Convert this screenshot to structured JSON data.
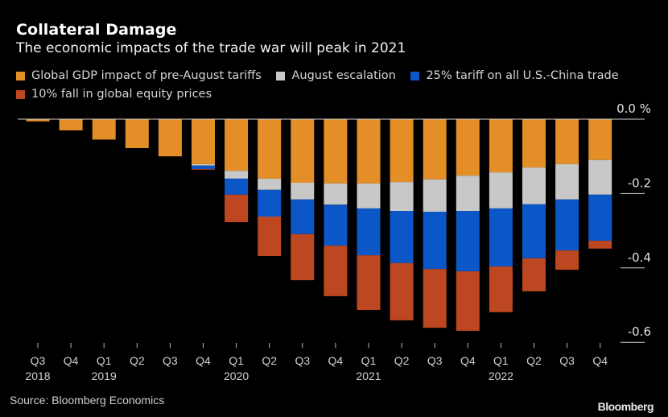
{
  "header": {
    "title": "Collateral Damage",
    "subtitle": "The economic impacts of the trade war will peak in 2021"
  },
  "footer": {
    "source": "Source: Bloomberg Economics",
    "brand": "Bloomberg"
  },
  "chart_data": {
    "type": "bar",
    "stacked": true,
    "title": "Collateral Damage",
    "subtitle": "The economic impacts of the trade war will peak in 2021",
    "xlabel": "",
    "ylabel": "",
    "ylim": [
      -0.62,
      0.0
    ],
    "y_unit": "%",
    "y_axis_position": "right",
    "yticks": [
      {
        "value": 0.0,
        "label": "0.0 %"
      },
      {
        "value": -0.2,
        "label": "-0.2"
      },
      {
        "value": -0.4,
        "label": "-0.4"
      },
      {
        "value": -0.6,
        "label": "-0.6"
      }
    ],
    "grid": false,
    "legend_position": "top-left",
    "categories": [
      "Q3 2018",
      "Q4 2018",
      "Q1 2019",
      "Q2 2019",
      "Q3 2019",
      "Q4 2019",
      "Q1 2020",
      "Q2 2020",
      "Q3 2020",
      "Q4 2020",
      "Q1 2021",
      "Q2 2021",
      "Q3 2021",
      "Q4 2021",
      "Q1 2022",
      "Q2 2022",
      "Q3 2022",
      "Q4 2022"
    ],
    "tick_labels": [
      {
        "quarter": "Q3",
        "year": "2018"
      },
      {
        "quarter": "Q4",
        "year": ""
      },
      {
        "quarter": "Q1",
        "year": "2019"
      },
      {
        "quarter": "Q2",
        "year": ""
      },
      {
        "quarter": "Q3",
        "year": ""
      },
      {
        "quarter": "Q4",
        "year": ""
      },
      {
        "quarter": "Q1",
        "year": "2020"
      },
      {
        "quarter": "Q2",
        "year": ""
      },
      {
        "quarter": "Q3",
        "year": ""
      },
      {
        "quarter": "Q4",
        "year": ""
      },
      {
        "quarter": "Q1",
        "year": "2021"
      },
      {
        "quarter": "Q2",
        "year": ""
      },
      {
        "quarter": "Q3",
        "year": ""
      },
      {
        "quarter": "Q4",
        "year": ""
      },
      {
        "quarter": "Q1",
        "year": "2022"
      },
      {
        "quarter": "Q2",
        "year": ""
      },
      {
        "quarter": "Q3",
        "year": ""
      },
      {
        "quarter": "Q4",
        "year": ""
      }
    ],
    "series": [
      {
        "name": "Global GDP impact of pre-August tariffs",
        "color": "#E38E27",
        "values": [
          -0.006,
          -0.03,
          -0.055,
          -0.078,
          -0.1,
          -0.121,
          -0.139,
          -0.16,
          -0.171,
          -0.173,
          -0.173,
          -0.169,
          -0.162,
          -0.152,
          -0.143,
          -0.13,
          -0.121,
          -0.11
        ]
      },
      {
        "name": "August escalation",
        "color": "#C8C8C8",
        "values": [
          0,
          0,
          0,
          0,
          0,
          -0.004,
          -0.021,
          -0.03,
          -0.045,
          -0.057,
          -0.067,
          -0.078,
          -0.087,
          -0.095,
          -0.097,
          -0.099,
          -0.095,
          -0.093
        ]
      },
      {
        "name": "25% tariff on all U.S.-China trade",
        "color": "#0B57C7",
        "values": [
          0,
          0,
          0,
          0,
          0,
          -0.009,
          -0.043,
          -0.072,
          -0.093,
          -0.11,
          -0.126,
          -0.14,
          -0.154,
          -0.162,
          -0.156,
          -0.145,
          -0.137,
          -0.124
        ]
      },
      {
        "name": "10% fall in global equity prices",
        "color": "#BC4720",
        "values": [
          0,
          0,
          0,
          0,
          0,
          -0.002,
          -0.074,
          -0.106,
          -0.124,
          -0.136,
          -0.147,
          -0.154,
          -0.158,
          -0.16,
          -0.123,
          -0.089,
          -0.052,
          -0.021
        ]
      }
    ]
  }
}
